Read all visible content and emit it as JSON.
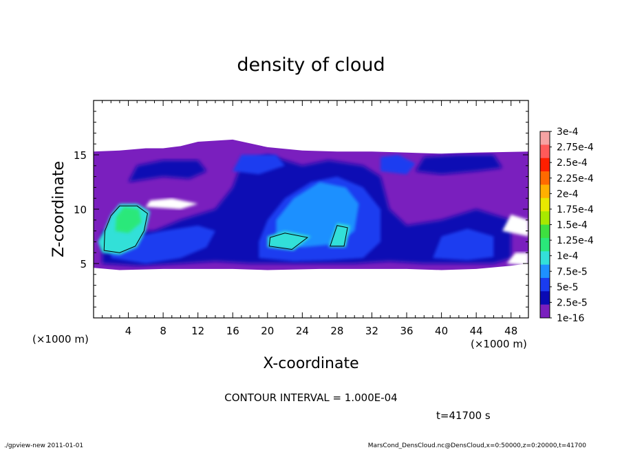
{
  "chart_data": {
    "type": "heatmap",
    "title": "density of cloud",
    "xlabel": "X-coordinate",
    "ylabel": "Z-coordinate",
    "x_unit_label": "(×1000 m)",
    "y_unit_label": "(×1000 m)",
    "xlim": [
      0,
      50
    ],
    "ylim": [
      0,
      20
    ],
    "x_ticks": [
      4,
      8,
      12,
      16,
      20,
      24,
      28,
      32,
      36,
      40,
      44,
      48
    ],
    "y_ticks": [
      5,
      10,
      15
    ],
    "colorbar": {
      "labels": [
        "3e-4",
        "2.75e-4",
        "2.5e-4",
        "2.25e-4",
        "2e-4",
        "1.75e-4",
        "1.5e-4",
        "1.25e-4",
        "1e-4",
        "7.5e-5",
        "5e-5",
        "2.5e-5",
        "1e-16"
      ],
      "colors": [
        "#f6a3a3",
        "#ff5a5a",
        "#ff1f00",
        "#ff6a00",
        "#ffb000",
        "#e8e800",
        "#a8e800",
        "#3ee040",
        "#2ae87a",
        "#33e0d8",
        "#1e90ff",
        "#1a3cf0",
        "#0a0ab4",
        "#7a1fbe"
      ]
    },
    "cloud_regions": [
      {
        "level": "1e-16",
        "x_range": [
          0,
          50
        ],
        "z_range": [
          4.5,
          16.5
        ]
      },
      {
        "level": "2.5e-5",
        "x_range": [
          1,
          49
        ],
        "z_range": [
          4.5,
          15.5
        ]
      },
      {
        "level": "5e-5",
        "x_range": [
          2,
          48
        ],
        "z_range": [
          5,
          15
        ]
      },
      {
        "level": "7.5e-5",
        "x_range": [
          19,
          31
        ],
        "z_range": [
          6,
          11
        ]
      },
      {
        "level": "1e-4",
        "x_range": [
          1.5,
          6.5
        ],
        "z_range": [
          6,
          10.5
        ]
      },
      {
        "level": "1.25e-4",
        "x_range": [
          2.5,
          5.5
        ],
        "z_range": [
          8,
          10
        ]
      }
    ],
    "contour_interval_text": "CONTOUR INTERVAL = 1.000E-04",
    "time_text": "t=41700 s"
  },
  "footer": {
    "left": "./gpview-new 2011-01-01",
    "right": "MarsCond_DensCloud.nc@DensCloud,x=0:50000,z=0:20000,t=41700"
  }
}
